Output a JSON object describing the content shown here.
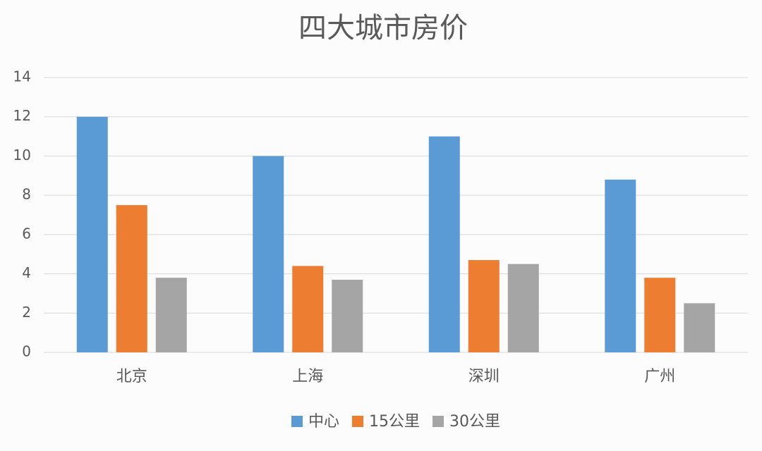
{
  "chart_data": {
    "type": "bar",
    "title": "四大城市房价",
    "categories": [
      "北京",
      "上海",
      "深圳",
      "广州"
    ],
    "series": [
      {
        "name": "中心",
        "color": "#5b9bd5",
        "values": [
          12,
          10,
          11,
          8.8
        ]
      },
      {
        "name": "15公里",
        "color": "#ed7d31",
        "values": [
          7.5,
          4.4,
          4.7,
          3.8
        ]
      },
      {
        "name": "30公里",
        "color": "#a5a5a5",
        "values": [
          3.8,
          3.7,
          4.5,
          2.5
        ]
      }
    ],
    "ylim": [
      0,
      14
    ],
    "yticks": [
      0,
      2,
      4,
      6,
      8,
      10,
      12,
      14
    ],
    "grid": true,
    "legend": "bottom"
  }
}
